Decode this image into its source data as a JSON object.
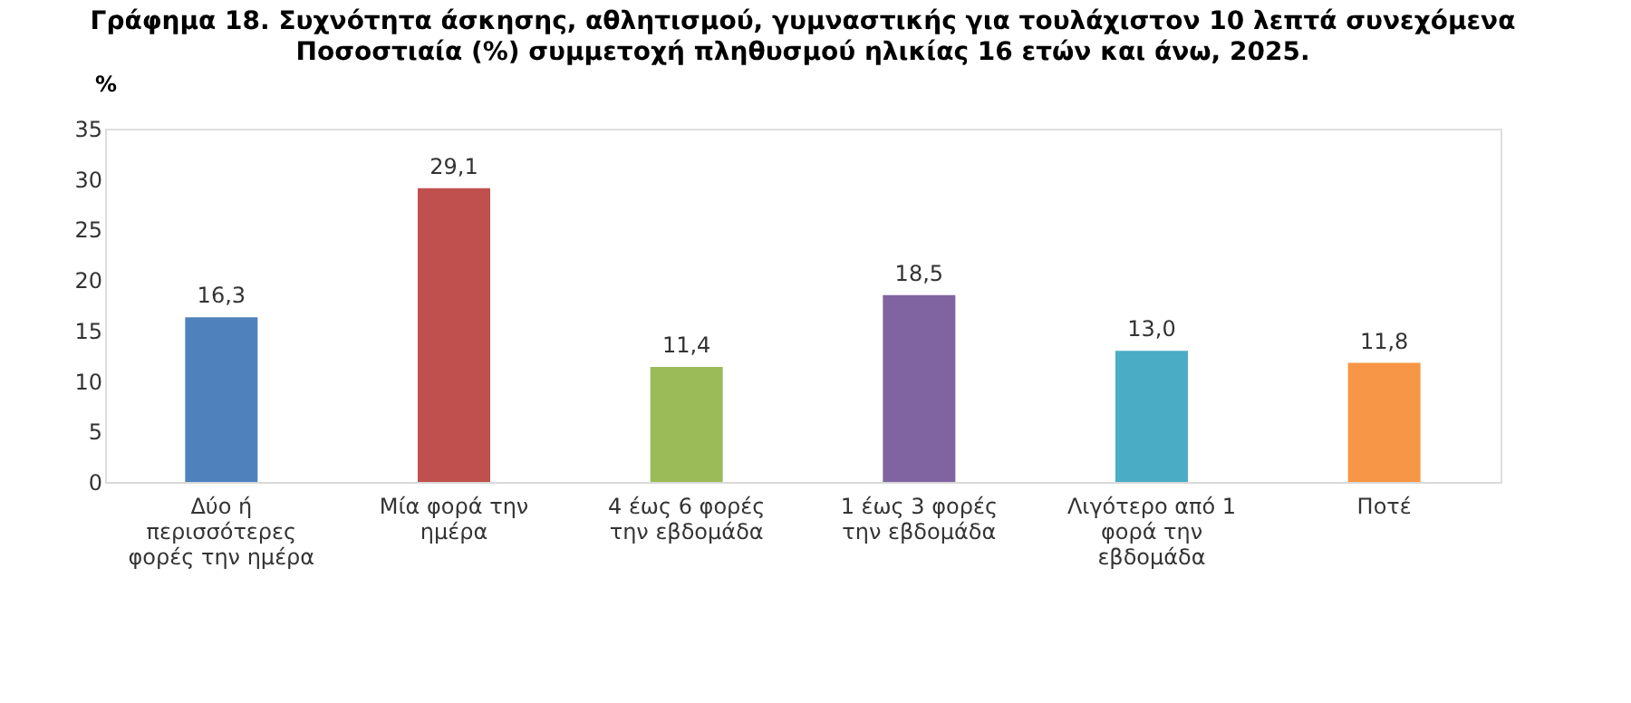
{
  "chart_data": {
    "type": "bar",
    "title": "Γράφημα 18. Συχνότητα άσκησης, αθλητισμού, γυμναστικής για τουλάχιστον 10 λεπτά συνεχόμενα",
    "subtitle": "Ποσοστιαία (%) συμμετοχή πληθυσμού ηλικίας 16 ετών και άνω, 2025.",
    "ylabel": "%",
    "categories": [
      "Δύο ή\nπερισσότερες\nφορές την ημέρα",
      "Μία φορά την\nημέρα",
      "4 έως 6 φορές\nτην εβδομάδα",
      "1 έως 3 φορές\nτην εβδομάδα",
      "Λιγότερο από 1\nφορά την\nεβδομάδα",
      "Ποτέ"
    ],
    "values": [
      16.3,
      29.1,
      11.4,
      18.5,
      13.0,
      11.8
    ],
    "value_labels": [
      "16,3",
      "29,1",
      "11,4",
      "18,5",
      "13,0",
      "11,8"
    ],
    "colors": [
      "#4f81bd",
      "#c0504d",
      "#9bbb59",
      "#8064a2",
      "#4bacc6",
      "#f79646"
    ],
    "ylim": [
      0,
      35
    ],
    "yticks": [
      0,
      5,
      10,
      15,
      20,
      25,
      30,
      35
    ],
    "grid": false,
    "legend": false
  }
}
